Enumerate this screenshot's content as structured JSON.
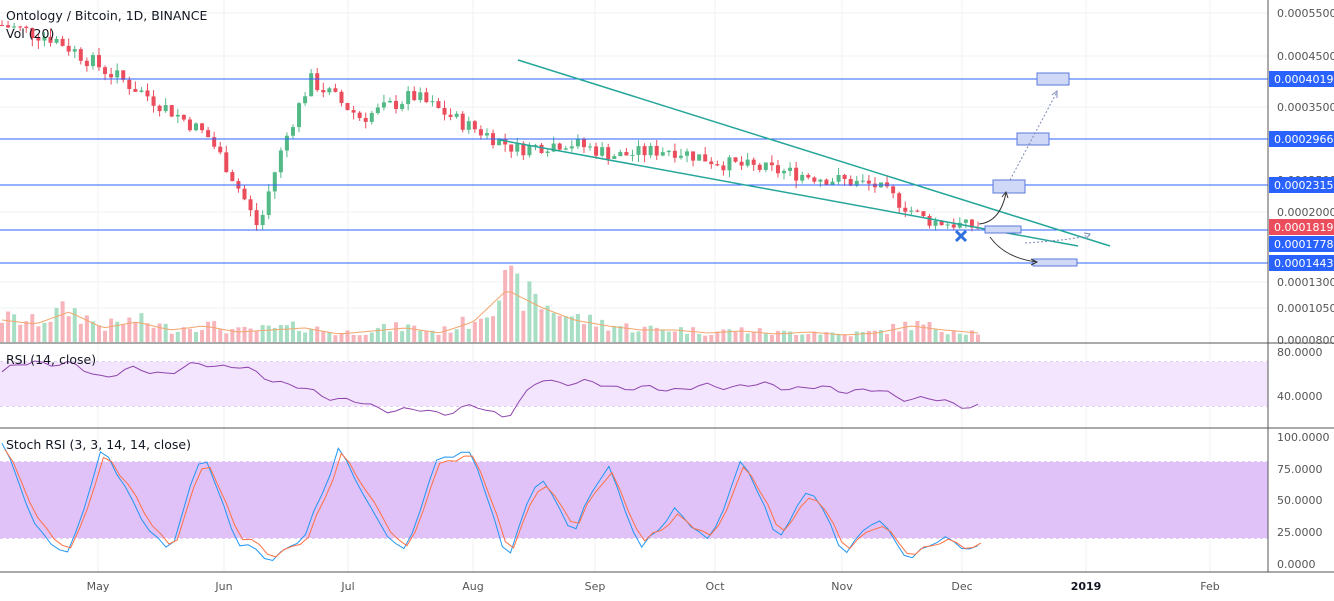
{
  "header": {
    "title": "Ontology / Bitcoin, 1D, BINANCE",
    "volume_legend": "Vol (20)",
    "rsi_legend": "RSI (14, close)",
    "stoch_legend": "Stoch RSI (3, 3, 14, 14, close)"
  },
  "colors": {
    "up": "#53b987",
    "down": "#eb4d5c",
    "up_volume": "#a8dfc4",
    "down_volume": "#f7b5bb",
    "level_line": "#2962ff",
    "channel": "#26a69a",
    "rsi_band": "#f3e5fd",
    "stoch_band": "#e0c2f8",
    "stoch_k": "#2196f3",
    "stoch_d": "#ff7043",
    "price_label_blue": "#2962ff",
    "price_label_red": "#eb4d5c"
  },
  "chart_data": [
    {
      "type": "candlestick",
      "title": "Ontology / Bitcoin, 1D, BINANCE",
      "xaxis_ticks": [
        "May",
        "Jun",
        "Jul",
        "Aug",
        "Sep",
        "Oct",
        "Nov",
        "Dec",
        "2019",
        "Feb"
      ],
      "yaxis_ticks": [
        "0.0005500",
        "0.0004500",
        "0.0003500",
        "0.0002500",
        "0.0002000",
        "0.0001500",
        "0.0001300",
        "0.0001050",
        "0.0000800"
      ],
      "horizontal_levels": [
        "0.0004019",
        "0.0002966",
        "0.0002315",
        "0.0001778",
        "0.0001443"
      ],
      "last_price": "0.0001819",
      "close_series": [
        0.00052,
        0.00049,
        0.00042,
        0.00036,
        0.0003,
        0.00018,
        0.0004,
        0.00033,
        0.00037,
        0.00032,
        0.00028,
        0.00029,
        0.00027,
        0.00028,
        0.00026,
        0.00025,
        0.00024,
        0.00023,
        0.00019,
        0.000182
      ],
      "annotations": [
        "descending channel",
        "projected breakout targets",
        "projected breakdown target"
      ]
    },
    {
      "type": "bar",
      "title": "Vol (20)",
      "series": [
        {
          "name": "Volume",
          "values": [
            22,
            18,
            30,
            14,
            20,
            12,
            16,
            10,
            12,
            14,
            8,
            11,
            14,
            9,
            20,
            52,
            35,
            22,
            16,
            12,
            12,
            9,
            11,
            8,
            10,
            7,
            9,
            16,
            12,
            9
          ]
        }
      ]
    },
    {
      "type": "line",
      "title": "RSI (14, close)",
      "yaxis_ticks": [
        "80.0000",
        "40.0000"
      ],
      "series": [
        {
          "name": "RSI",
          "values": [
            62,
            72,
            68,
            58,
            64,
            61,
            70,
            66,
            56,
            45,
            38,
            30,
            27,
            25,
            30,
            22,
            55,
            52,
            50,
            46,
            47,
            48,
            50,
            49,
            47,
            46,
            44,
            38,
            35,
            30
          ]
        }
      ]
    },
    {
      "type": "line",
      "title": "Stoch RSI (3, 3, 14, 14, close)",
      "yaxis_ticks": [
        "100.0000",
        "75.0000",
        "50.0000",
        "25.0000",
        "0.0000"
      ],
      "series": [
        {
          "values": [
            95,
            30,
            5,
            95,
            40,
            10,
            90,
            15,
            5,
            20,
            92,
            40,
            8,
            88,
            85,
            5,
            70,
            25,
            80,
            10,
            45,
            15,
            85,
            20,
            60,
            10,
            35,
            5,
            20,
            12
          ]
        },
        {
          "values": [
            90,
            35,
            8,
            90,
            45,
            12,
            85,
            20,
            8,
            18,
            88,
            45,
            10,
            85,
            82,
            10,
            65,
            30,
            75,
            15,
            40,
            18,
            80,
            25,
            55,
            14,
            30,
            8,
            18,
            14
          ]
        }
      ]
    }
  ]
}
